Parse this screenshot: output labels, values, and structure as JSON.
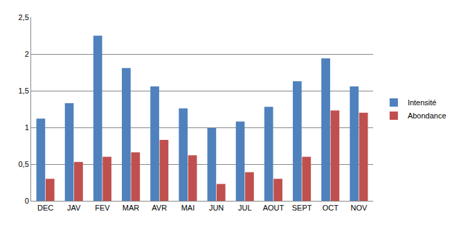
{
  "chart_data": {
    "type": "bar",
    "categories": [
      "DEC",
      "JAV",
      "FEV",
      "MAR",
      "AVR",
      "MAI",
      "JUN",
      "JUL",
      "AOUT",
      "SEPT",
      "OCT",
      "NOV"
    ],
    "series": [
      {
        "name": "Intensité",
        "color": "#4f81bd",
        "values": [
          1.12,
          1.33,
          2.25,
          1.81,
          1.56,
          1.26,
          0.99,
          1.08,
          1.28,
          1.63,
          1.94,
          1.56
        ]
      },
      {
        "name": "Abondance",
        "color": "#c0504d",
        "values": [
          0.3,
          0.53,
          0.6,
          0.66,
          0.83,
          0.62,
          0.23,
          0.39,
          0.3,
          0.6,
          1.23,
          1.2
        ]
      }
    ],
    "ylim": [
      0,
      2.5
    ],
    "yticks": [
      0,
      {
        "value": 0.5,
        "label": "0,5"
      },
      1,
      {
        "value": 1.5,
        "label": "1,5"
      },
      2,
      {
        "value": 2.5,
        "label": "2,5"
      }
    ],
    "grid": true,
    "legend": "right"
  }
}
